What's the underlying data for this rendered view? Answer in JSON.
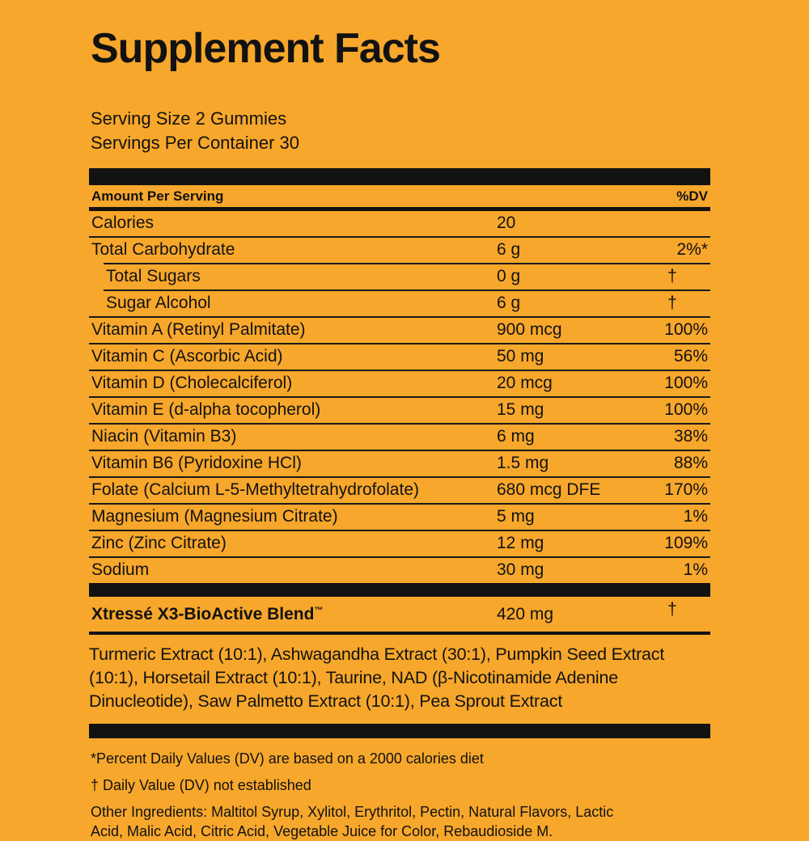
{
  "page": {
    "title": "Supplement Facts",
    "serving_size": "Serving Size 2 Gummies",
    "servings_per_container": "Servings Per Container 30"
  },
  "table": {
    "header": {
      "left": "Amount Per Serving",
      "right": "%DV"
    },
    "rows": [
      {
        "name": "Calories",
        "amount": "20",
        "dv": "",
        "indent": false
      },
      {
        "name": "Total Carbohydrate",
        "amount": "6 g",
        "dv": "2%*",
        "indent": false
      },
      {
        "name": "Total Sugars",
        "amount": "0 g",
        "dv": "†",
        "indent": true
      },
      {
        "name": "Sugar Alcohol",
        "amount": "6 g",
        "dv": "†",
        "indent": true
      },
      {
        "name": "Vitamin A (Retinyl Palmitate)",
        "amount": "900 mcg",
        "dv": "100%",
        "indent": false
      },
      {
        "name": "Vitamin C (Ascorbic Acid)",
        "amount": "50 mg",
        "dv": "56%",
        "indent": false
      },
      {
        "name": "Vitamin D (Cholecalciferol)",
        "amount": "20 mcg",
        "dv": "100%",
        "indent": false
      },
      {
        "name": "Vitamin E (d-alpha tocopherol)",
        "amount": "15 mg",
        "dv": "100%",
        "indent": false
      },
      {
        "name": "Niacin (Vitamin B3)",
        "amount": "6 mg",
        "dv": "38%",
        "indent": false
      },
      {
        "name": "Vitamin B6 (Pyridoxine HCl)",
        "amount": "1.5 mg",
        "dv": "88%",
        "indent": false
      },
      {
        "name": "Folate (Calcium L-5-Methyltetrahydrofolate)",
        "amount": "680 mcg DFE",
        "dv": "170%",
        "indent": false
      },
      {
        "name": "Magnesium (Magnesium Citrate)",
        "amount": "5 mg",
        "dv": "1%",
        "indent": false
      },
      {
        "name": "Zinc (Zinc Citrate)",
        "amount": "12 mg",
        "dv": "109%",
        "indent": false
      },
      {
        "name": "Sodium",
        "amount": "30 mg",
        "dv": "1%",
        "indent": false
      }
    ],
    "blend": {
      "name": "Xtressé X3-BioActive Blend",
      "tm": "™",
      "amount": "420 mg",
      "dv": "†"
    },
    "blend_ingredients": "Turmeric Extract (10:1), Ashwagandha Extract (30:1), Pumpkin Seed Extract (10:1), Horsetail Extract (10:1), Taurine, NAD (β-Nicotinamide Adenine Dinucleotide), Saw Palmetto Extract (10:1), Pea Sprout Extract"
  },
  "footnotes": {
    "percent_dv": "*Percent Daily Values (DV) are based on a 2000 calories diet",
    "dagger": "† Daily Value (DV) not established",
    "other_ingredients": "Other Ingredients: Maltitol Syrup, Xylitol, Erythritol, Pectin, Natural Flavors, Lactic Acid, Malic Acid, Citric Acid, Vegetable Juice for Color, Rebaudioside M."
  },
  "colors": {
    "background": "#F7A72B",
    "ink": "#121212"
  }
}
